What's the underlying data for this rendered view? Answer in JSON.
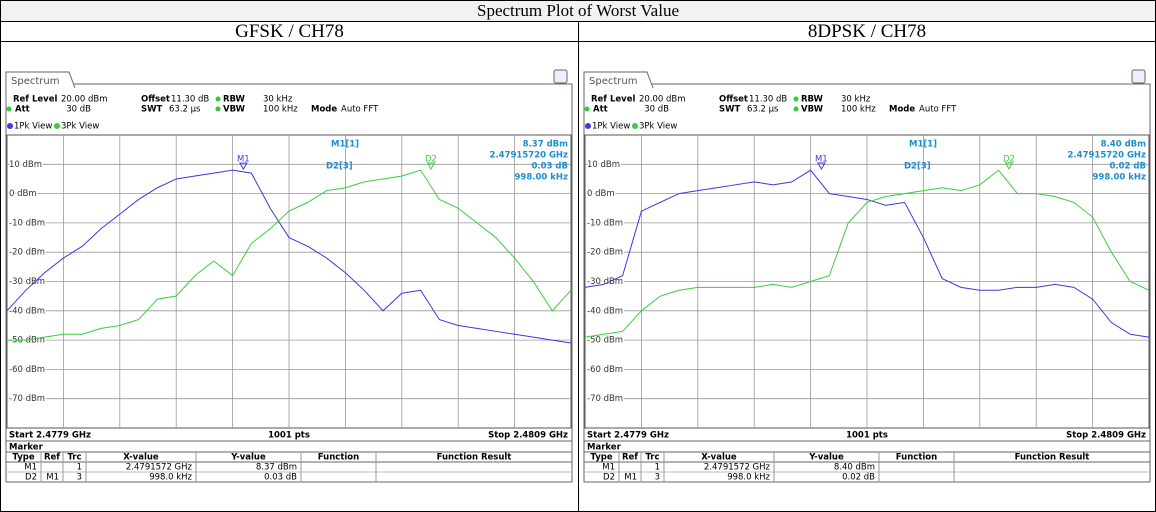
{
  "header": {
    "title": "Spectrum Plot of Worst Value"
  },
  "panels": [
    {
      "heading": "GFSK / CH78",
      "tab": "Spectrum",
      "ref_level_label": "Ref Level",
      "ref_level": "20.00 dBm",
      "offset_label": "Offset",
      "offset": "11.30 dB",
      "rbw_label": "RBW",
      "rbw": "30 kHz",
      "att_label": "Att",
      "att": "30 dB",
      "swt_label": "SWT",
      "swt": "63.2 µs",
      "vbw_label": "VBW",
      "vbw": "100 kHz",
      "mode_label": "Mode",
      "mode": "Auto FFT",
      "views": [
        "1Pk View",
        "3Pk View"
      ],
      "readout": {
        "m1_name": "M1[1]",
        "m1_level": "8.37 dBm",
        "m1_freq": "2.47915720 GHz",
        "d2_name": "D2[3]",
        "d2_level": "0.03 dB",
        "d2_freq": "998.00 kHz"
      },
      "start": "Start 2.4779 GHz",
      "points": "1001 pts",
      "stop": "Stop 2.4809 GHz",
      "xlim": [
        2.4779,
        2.4809
      ],
      "ylim": [
        -80,
        20
      ],
      "yticks": [
        {
          "value": 10,
          "label": "10 dBm"
        },
        {
          "value": 0,
          "label": "0 dBm"
        },
        {
          "value": -10,
          "label": "-10 dBm"
        },
        {
          "value": -20,
          "label": "-20 dBm"
        },
        {
          "value": -30,
          "label": "-30 dBm"
        },
        {
          "value": -40,
          "label": "-40 dBm"
        },
        {
          "value": -50,
          "label": "-50 dBm"
        },
        {
          "value": -60,
          "label": "-60 dBm"
        },
        {
          "value": -70,
          "label": "-70 dBm"
        }
      ],
      "x": [
        2.4779,
        2.478,
        2.4781,
        2.4782,
        2.4783,
        2.4784,
        2.4785,
        2.4786,
        2.4787,
        2.4788,
        2.4789,
        2.479,
        2.4791,
        2.4792,
        2.4793,
        2.4794,
        2.4795,
        2.4796,
        2.4797,
        2.4798,
        2.4799,
        2.48,
        2.4801,
        2.4802,
        2.4803,
        2.4804,
        2.4805,
        2.4806,
        2.4807,
        2.4808,
        2.4809
      ],
      "series": [
        {
          "name": "1Pk View",
          "color": "#3a3ae0",
          "values": [
            -40,
            -33,
            -27,
            -22,
            -18,
            -12,
            -7,
            -2,
            2,
            5,
            6,
            7,
            8,
            7,
            -5,
            -15,
            -18,
            -22,
            -27,
            -33,
            -40,
            -34,
            -33,
            -43,
            -45,
            -46,
            -47,
            -48,
            -49,
            -50,
            -51
          ]
        },
        {
          "name": "3Pk View",
          "color": "#3ccc3c",
          "values": [
            -50,
            -50,
            -49,
            -48,
            -48,
            -46,
            -45,
            -43,
            -36,
            -35,
            -28,
            -23,
            -28,
            -17,
            -12,
            -6,
            -3,
            1,
            2,
            4,
            5,
            6,
            8,
            -2,
            -5,
            -10,
            -15,
            -22,
            -30,
            -40,
            -33
          ]
        }
      ],
      "markers": [
        {
          "name": "M1",
          "x": 2.4791572,
          "y": 8.37
        },
        {
          "name": "D2",
          "x": 2.4801552,
          "y": 8.4
        }
      ],
      "table_title": "Marker",
      "columns": [
        "Type",
        "Ref",
        "Trc",
        "X-value",
        "Y-value",
        "Function",
        "Function Result"
      ],
      "rows": [
        {
          "type": "M1",
          "trc": "1",
          "x": "2.4791572 GHz",
          "y": "8.37 dBm"
        },
        {
          "type": "D2",
          "ref": "M1",
          "trc": "3",
          "x": "998.0 kHz",
          "y": "0.03 dB"
        }
      ]
    },
    {
      "heading": "8DPSK / CH78",
      "tab": "Spectrum",
      "ref_level_label": "Ref Level",
      "ref_level": "20.00 dBm",
      "offset_label": "Offset",
      "offset": "11.30 dB",
      "rbw_label": "RBW",
      "rbw": "30 kHz",
      "att_label": "Att",
      "att": "30 dB",
      "swt_label": "SWT",
      "swt": "63.2 µs",
      "vbw_label": "VBW",
      "vbw": "100 kHz",
      "mode_label": "Mode",
      "mode": "Auto FFT",
      "views": [
        "1Pk View",
        "3Pk View"
      ],
      "readout": {
        "m1_name": "M1[1]",
        "m1_level": "8.40 dBm",
        "m1_freq": "2.47915720 GHz",
        "d2_name": "D2[3]",
        "d2_level": "0.02 dB",
        "d2_freq": "998.00 kHz"
      },
      "start": "Start 2.4779 GHz",
      "points": "1001 pts",
      "stop": "Stop 2.4809 GHz",
      "xlim": [
        2.4779,
        2.4809
      ],
      "ylim": [
        -80,
        20
      ],
      "yticks": [
        {
          "value": 10,
          "label": "10 dBm"
        },
        {
          "value": 0,
          "label": "0 dBm"
        },
        {
          "value": -10,
          "label": "-10 dBm"
        },
        {
          "value": -20,
          "label": "-20 dBm"
        },
        {
          "value": -30,
          "label": "-30 dBm"
        },
        {
          "value": -40,
          "label": "-40 dBm"
        },
        {
          "value": -50,
          "label": "-50 dBm"
        },
        {
          "value": -60,
          "label": "-60 dBm"
        },
        {
          "value": -70,
          "label": "-70 dBm"
        }
      ],
      "x": [
        2.4779,
        2.478,
        2.4781,
        2.4782,
        2.4783,
        2.4784,
        2.4785,
        2.4786,
        2.4787,
        2.4788,
        2.4789,
        2.479,
        2.4791,
        2.4792,
        2.4793,
        2.4794,
        2.4795,
        2.4796,
        2.4797,
        2.4798,
        2.4799,
        2.48,
        2.4801,
        2.4802,
        2.4803,
        2.4804,
        2.4805,
        2.4806,
        2.4807,
        2.4808,
        2.4809
      ],
      "series": [
        {
          "name": "1Pk View",
          "color": "#3a3ae0",
          "values": [
            -32,
            -31,
            -28,
            -6,
            -3,
            0,
            1,
            2,
            3,
            4,
            3,
            4,
            8,
            0,
            -1,
            -2,
            -4,
            -3,
            -15,
            -29,
            -32,
            -33,
            -33,
            -32,
            -32,
            -31,
            -32,
            -36,
            -44,
            -48,
            -49
          ]
        },
        {
          "name": "3Pk View",
          "color": "#3ccc3c",
          "values": [
            -49,
            -48,
            -47,
            -40,
            -35,
            -33,
            -32,
            -32,
            -32,
            -32,
            -31,
            -32,
            -30,
            -28,
            -10,
            -3,
            -1,
            0,
            1,
            2,
            1,
            3,
            8,
            0,
            0,
            -1,
            -3,
            -8,
            -20,
            -30,
            -33
          ]
        }
      ],
      "markers": [
        {
          "name": "M1",
          "x": 2.4791572,
          "y": 8.4
        },
        {
          "name": "D2",
          "x": 2.4801552,
          "y": 8.42
        }
      ],
      "table_title": "Marker",
      "columns": [
        "Type",
        "Ref",
        "Trc",
        "X-value",
        "Y-value",
        "Function",
        "Function Result"
      ],
      "rows": [
        {
          "type": "M1",
          "trc": "1",
          "x": "2.4791572 GHz",
          "y": "8.40 dBm"
        },
        {
          "type": "D2",
          "ref": "M1",
          "trc": "3",
          "x": "998.0 kHz",
          "y": "0.02 dB"
        }
      ]
    }
  ]
}
